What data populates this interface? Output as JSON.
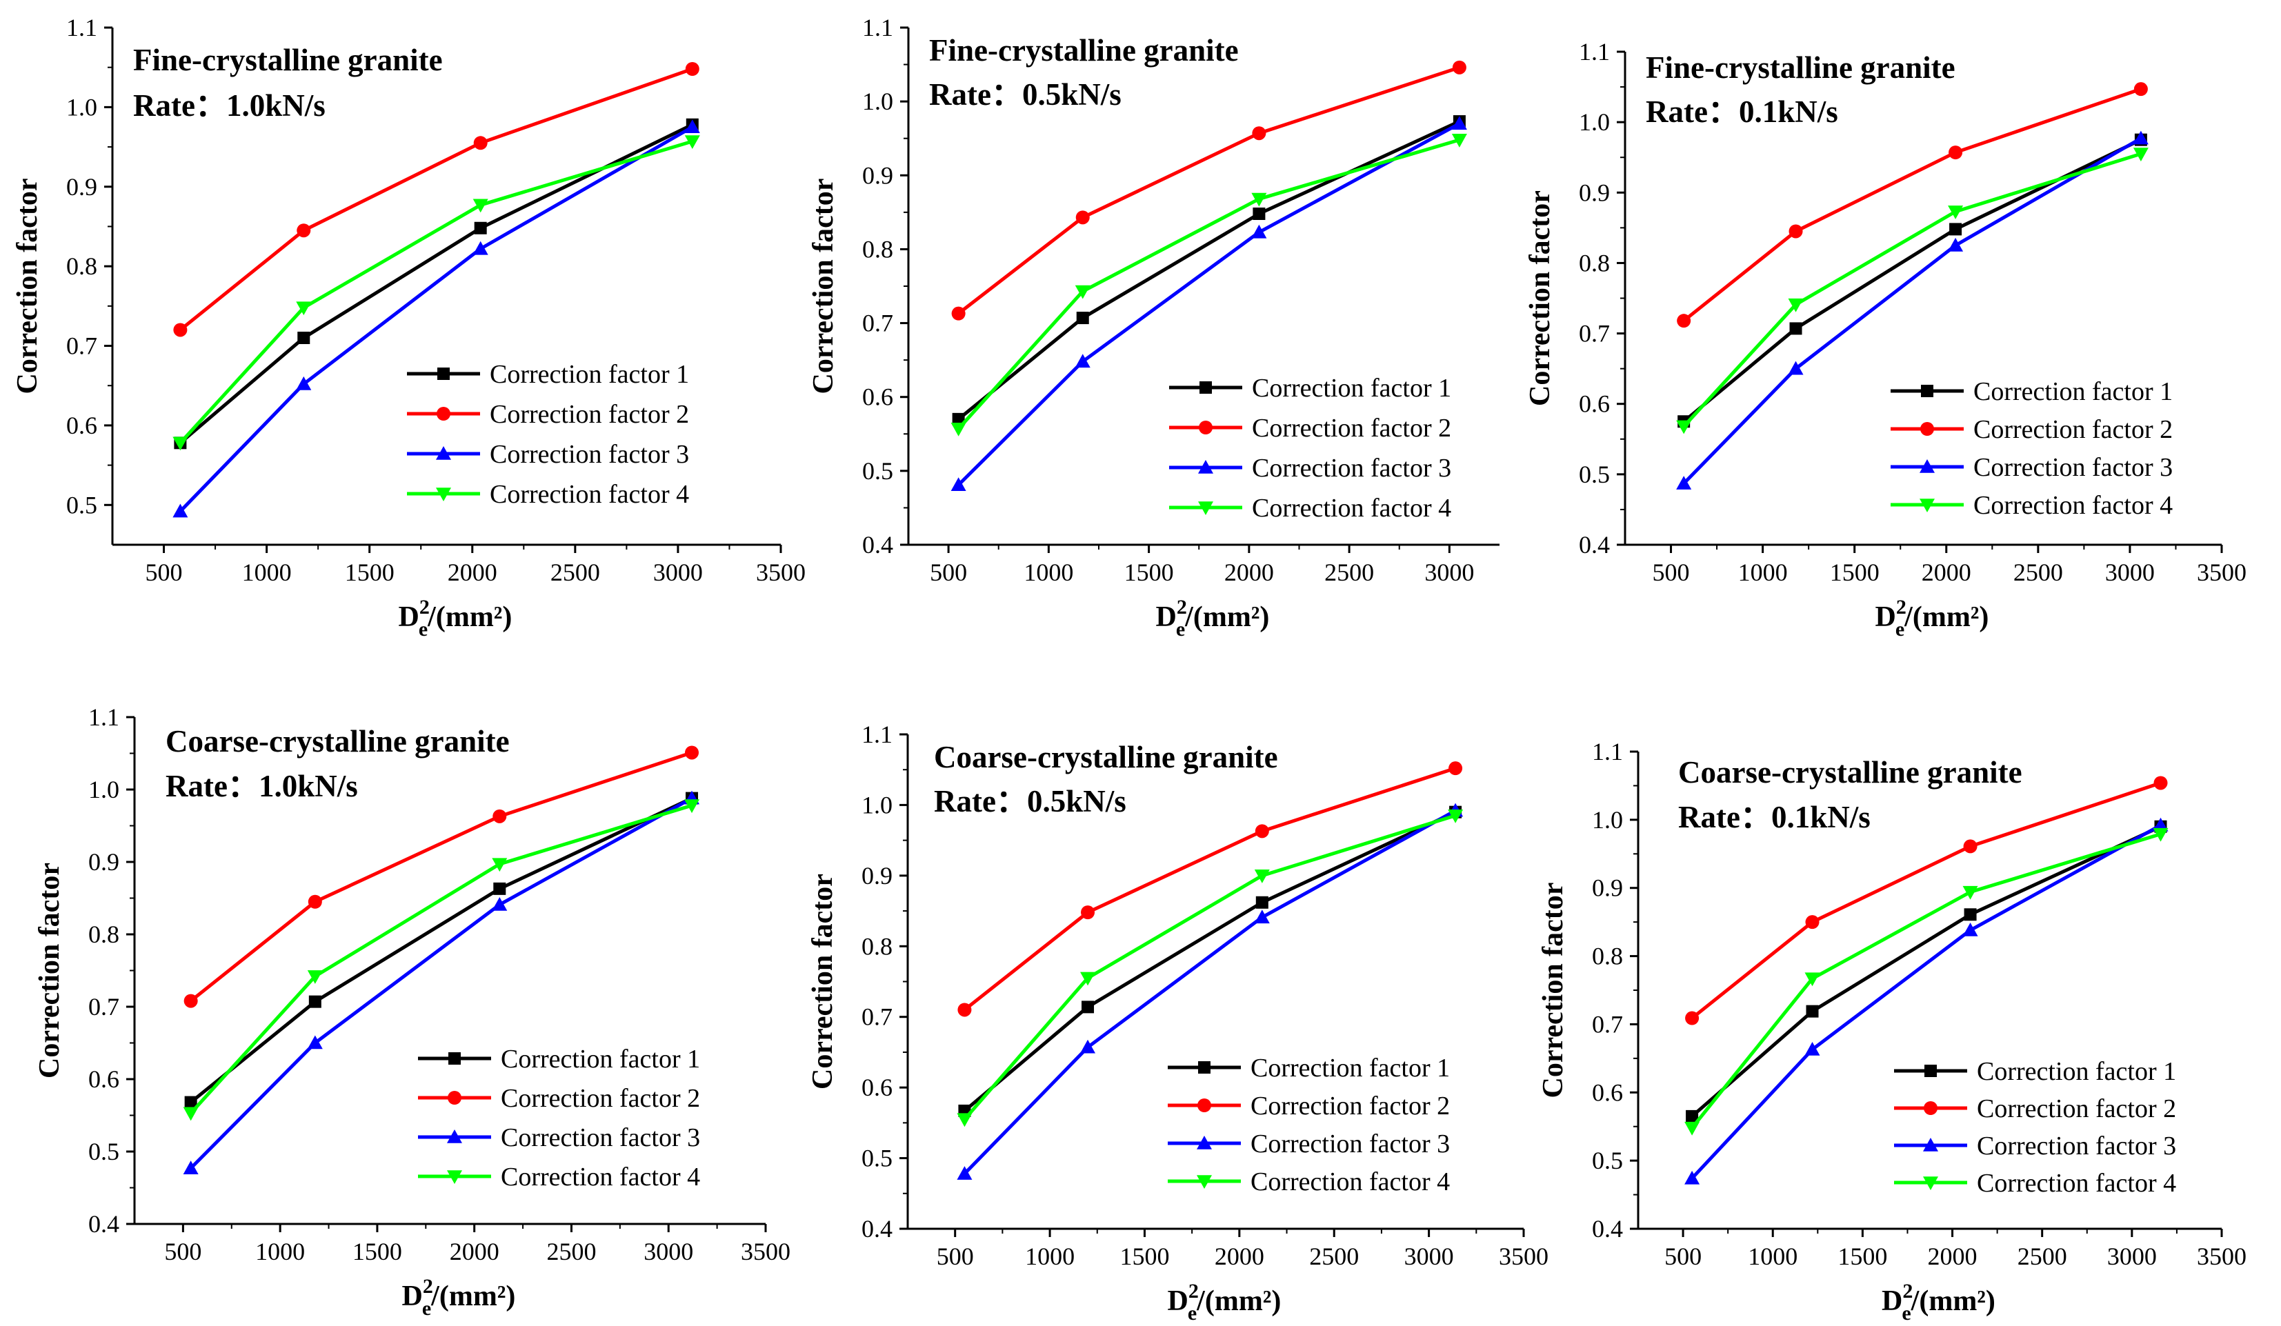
{
  "chart_data": [
    {
      "type": "line",
      "title": "Fine-crystalline granite",
      "subtitle": "Rate：1.0kN/s",
      "ylabel": "Correction factor",
      "xlabel_main": "D",
      "xlabel_sup": "2",
      "xlabel_sub": "e",
      "xlabel_tail": "/(mm²)",
      "xlim": [
        250,
        3500
      ],
      "ylim": [
        0.45,
        1.1
      ],
      "xticks": [
        "500",
        "1000",
        "1500",
        "2000",
        "2500",
        "3000",
        "3500"
      ],
      "yticks": [
        "0.5",
        "0.6",
        "0.7",
        "0.8",
        "0.9",
        "1.0",
        "1.1"
      ],
      "x": [
        580,
        1180,
        2040,
        3070
      ],
      "series": [
        {
          "name": "Correction factor 1",
          "values": [
            0.578,
            0.71,
            0.848,
            0.978
          ]
        },
        {
          "name": "Correction factor 2",
          "values": [
            0.72,
            0.845,
            0.955,
            1.048
          ]
        },
        {
          "name": "Correction factor 3",
          "values": [
            0.492,
            0.652,
            0.822,
            0.975
          ]
        },
        {
          "name": "Correction factor 4",
          "values": [
            0.578,
            0.748,
            0.877,
            0.957
          ]
        }
      ],
      "legend": "lower-right"
    },
    {
      "type": "line",
      "title": "Fine-crystalline granite",
      "subtitle": "Rate：0.5kN/s",
      "ylabel": "Correction factor",
      "xlabel_main": "D",
      "xlabel_sup": "2",
      "xlabel_sub": "e",
      "xlabel_tail": "/(mm²)",
      "xlim": [
        300,
        3250
      ],
      "ylim": [
        0.4,
        1.1
      ],
      "xticks": [
        "500",
        "1000",
        "1500",
        "2000",
        "2500",
        "3000"
      ],
      "yticks": [
        "0.4",
        "0.5",
        "0.6",
        "0.7",
        "0.8",
        "0.9",
        "1.0",
        "1.1"
      ],
      "x": [
        550,
        1170,
        2050,
        3050
      ],
      "series": [
        {
          "name": "Correction factor 1",
          "values": [
            0.57,
            0.707,
            0.848,
            0.973
          ]
        },
        {
          "name": "Correction factor 2",
          "values": [
            0.713,
            0.843,
            0.957,
            1.046
          ]
        },
        {
          "name": "Correction factor 3",
          "values": [
            0.481,
            0.648,
            0.823,
            0.97
          ]
        },
        {
          "name": "Correction factor 4",
          "values": [
            0.557,
            0.743,
            0.868,
            0.948
          ]
        }
      ],
      "legend": "lower-right"
    },
    {
      "type": "line",
      "title": "Fine-crystalline granite",
      "subtitle": "Rate：0.1kN/s",
      "ylabel": "Correction factor",
      "xlabel_main": "D",
      "xlabel_sup": "2",
      "xlabel_sub": "e",
      "xlabel_tail": "/(mm²)",
      "xlim": [
        250,
        3500
      ],
      "ylim": [
        0.4,
        1.1
      ],
      "xticks": [
        "500",
        "1000",
        "1500",
        "2000",
        "2500",
        "3000",
        "3500"
      ],
      "yticks": [
        "0.4",
        "0.5",
        "0.6",
        "0.7",
        "0.8",
        "0.9",
        "1.0",
        "1.1"
      ],
      "x": [
        570,
        1180,
        2050,
        3060
      ],
      "series": [
        {
          "name": "Correction factor 1",
          "values": [
            0.575,
            0.707,
            0.848,
            0.975
          ]
        },
        {
          "name": "Correction factor 2",
          "values": [
            0.718,
            0.845,
            0.957,
            1.047
          ]
        },
        {
          "name": "Correction factor 3",
          "values": [
            0.487,
            0.65,
            0.825,
            0.977
          ]
        },
        {
          "name": "Correction factor 4",
          "values": [
            0.568,
            0.741,
            0.873,
            0.955
          ]
        }
      ],
      "legend": "lower-right"
    },
    {
      "type": "line",
      "title": "Coarse-crystalline granite",
      "subtitle": "Rate：1.0kN/s",
      "ylabel": "Correction factor",
      "xlabel_main": "D",
      "xlabel_sup": "2",
      "xlabel_sub": "e",
      "xlabel_tail": "/(mm²)",
      "xlim": [
        250,
        3500
      ],
      "ylim": [
        0.4,
        1.1
      ],
      "xticks": [
        "500",
        "1000",
        "1500",
        "2000",
        "2500",
        "3000",
        "3500"
      ],
      "yticks": [
        "0.4",
        "0.5",
        "0.6",
        "0.7",
        "0.8",
        "0.9",
        "1.0",
        "1.1"
      ],
      "x": [
        540,
        1180,
        2130,
        3120
      ],
      "series": [
        {
          "name": "Correction factor 1",
          "values": [
            0.568,
            0.707,
            0.863,
            0.988
          ]
        },
        {
          "name": "Correction factor 2",
          "values": [
            0.708,
            0.845,
            0.963,
            1.051
          ]
        },
        {
          "name": "Correction factor 3",
          "values": [
            0.477,
            0.65,
            0.841,
            0.988
          ]
        },
        {
          "name": "Correction factor 4",
          "values": [
            0.553,
            0.742,
            0.897,
            0.978
          ]
        }
      ],
      "legend": "lower-right"
    },
    {
      "type": "line",
      "title": "Coarse-crystalline granite",
      "subtitle": "Rate：0.5kN/s",
      "ylabel": "Correction factor",
      "xlabel_main": "D",
      "xlabel_sup": "2",
      "xlabel_sub": "e",
      "xlabel_tail": "/(mm²)",
      "xlim": [
        250,
        3500
      ],
      "ylim": [
        0.4,
        1.1
      ],
      "xticks": [
        "500",
        "1000",
        "1500",
        "2000",
        "2500",
        "3000",
        "3500"
      ],
      "yticks": [
        "0.4",
        "0.5",
        "0.6",
        "0.7",
        "0.8",
        "0.9",
        "1.0",
        "1.1"
      ],
      "x": [
        550,
        1200,
        2120,
        3140
      ],
      "series": [
        {
          "name": "Correction factor 1",
          "values": [
            0.567,
            0.714,
            0.862,
            0.99
          ]
        },
        {
          "name": "Correction factor 2",
          "values": [
            0.71,
            0.848,
            0.963,
            1.052
          ]
        },
        {
          "name": "Correction factor 3",
          "values": [
            0.478,
            0.657,
            0.841,
            0.992
          ]
        },
        {
          "name": "Correction factor 4",
          "values": [
            0.555,
            0.755,
            0.9,
            0.985
          ]
        }
      ],
      "legend": "lower-right"
    },
    {
      "type": "line",
      "title": "Coarse-crystalline granite",
      "subtitle": "Rate：0.1kN/s",
      "ylabel": "Correction factor",
      "xlabel_main": "D",
      "xlabel_sup": "2",
      "xlabel_sub": "e",
      "xlabel_tail": "/(mm²)",
      "xlim": [
        250,
        3500
      ],
      "ylim": [
        0.4,
        1.1
      ],
      "xticks": [
        "500",
        "1000",
        "1500",
        "2000",
        "2500",
        "3000",
        "3500"
      ],
      "yticks": [
        "0.4",
        "0.5",
        "0.6",
        "0.7",
        "0.8",
        "0.9",
        "1.0",
        "1.1"
      ],
      "x": [
        550,
        1220,
        2100,
        3160
      ],
      "series": [
        {
          "name": "Correction factor 1",
          "values": [
            0.565,
            0.719,
            0.861,
            0.99
          ]
        },
        {
          "name": "Correction factor 2",
          "values": [
            0.709,
            0.85,
            0.961,
            1.054
          ]
        },
        {
          "name": "Correction factor 3",
          "values": [
            0.474,
            0.663,
            0.838,
            0.992
          ]
        },
        {
          "name": "Correction factor 4",
          "values": [
            0.548,
            0.767,
            0.894,
            0.979
          ]
        }
      ],
      "legend": "lower-right"
    }
  ],
  "series_style": [
    {
      "color": "#000000",
      "marker": "square"
    },
    {
      "color": "#ff0000",
      "marker": "circle"
    },
    {
      "color": "#0000ff",
      "marker": "triangle-up"
    },
    {
      "color": "#00ff00",
      "marker": "triangle-down"
    }
  ]
}
